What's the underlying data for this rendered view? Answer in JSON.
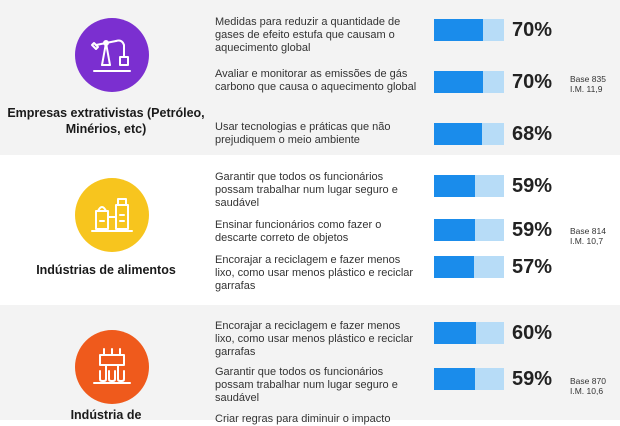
{
  "colors": {
    "bar_fill": "#1a8ceb",
    "bar_track": "#b7dcf7",
    "purple": "#7b2fd0",
    "yellow": "#f7c51e",
    "orange": "#ef5a1c"
  },
  "sections": [
    {
      "title": "Empresas extrativistas (Petróleo, Minérios, etc)",
      "icon": "oil-pump-icon",
      "base_label": "Base 835",
      "im_label": "I.M. 11,9"
    },
    {
      "title": "Indústrias de alimentos",
      "icon": "food-factory-icon",
      "base_label": "Base 814",
      "im_label": "I.M. 10,7"
    },
    {
      "title": "Indústria de",
      "icon": "factory-bottles-icon",
      "base_label": "Base 870",
      "im_label": "I.M. 10,6"
    }
  ],
  "chart_data": {
    "type": "bar",
    "orientation": "horizontal",
    "xlim": [
      0,
      100
    ],
    "unit": "%",
    "groups": [
      {
        "name": "Empresas extrativistas (Petróleo, Minérios, etc)",
        "base": "Base 835",
        "im": "I.M. 11,9",
        "rows": [
          {
            "label": "Medidas para reduzir a quantidade de gases de efeito estufa que causam o aquecimento global",
            "value": 70,
            "value_label": "70%"
          },
          {
            "label": "Avaliar e monitorar as emissões de gás carbono que causa o aquecimento global",
            "value": 70,
            "value_label": "70%"
          },
          {
            "label": "Usar tecnologias e práticas que não prejudiquem o meio ambiente",
            "value": 68,
            "value_label": "68%"
          }
        ]
      },
      {
        "name": "Indústrias de alimentos",
        "base": "Base 814",
        "im": "I.M. 10,7",
        "rows": [
          {
            "label": "Garantir que todos os funcionários possam trabalhar num lugar seguro e saudável",
            "value": 59,
            "value_label": "59%"
          },
          {
            "label": "Ensinar funcionários como fazer o descarte correto de objetos",
            "value": 59,
            "value_label": "59%"
          },
          {
            "label": "Encorajar a reciclagem e fazer menos lixo, como usar menos plástico e reciclar garrafas",
            "value": 57,
            "value_label": "57%"
          }
        ]
      },
      {
        "name": "Indústria de",
        "base": "Base 870",
        "im": "I.M. 10,6",
        "rows": [
          {
            "label": "Encorajar a reciclagem e fazer menos lixo, como usar menos plástico e reciclar garrafas",
            "value": 60,
            "value_label": "60%"
          },
          {
            "label": "Garantir que todos os funcionários possam trabalhar num lugar seguro e saudável",
            "value": 59,
            "value_label": "59%"
          },
          {
            "label": "Criar regras para diminuir o impacto",
            "value": null,
            "value_label": ""
          }
        ]
      }
    ]
  }
}
